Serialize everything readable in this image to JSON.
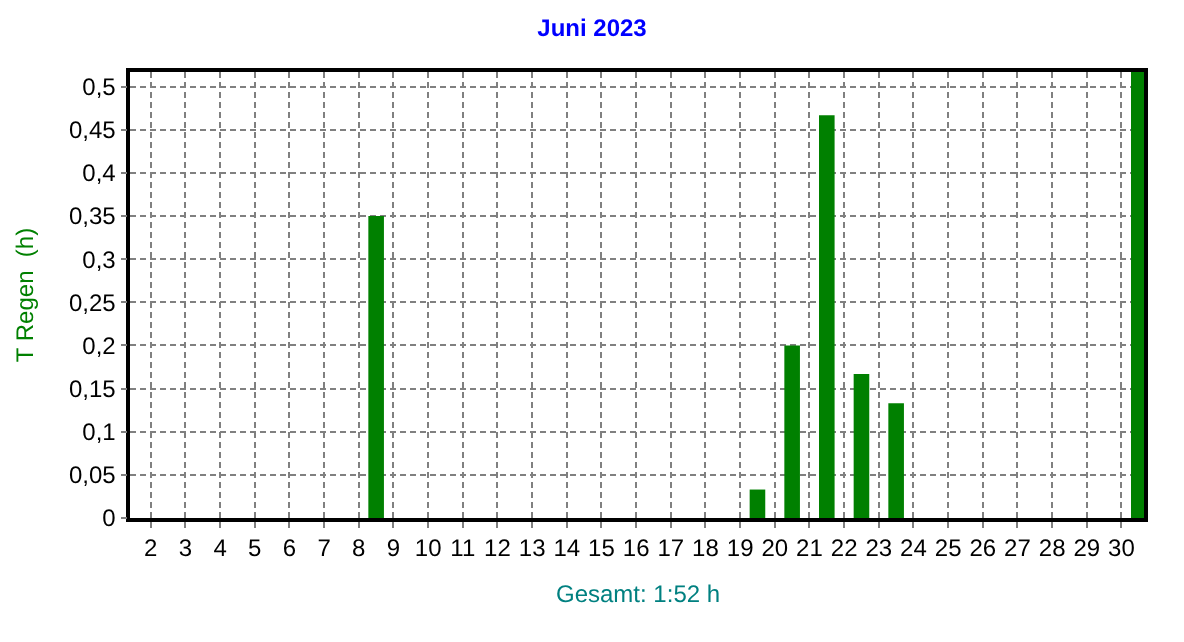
{
  "chart_data": {
    "type": "bar",
    "title": "Juni 2023",
    "ylabel": "T Regen  (h)",
    "x": [
      1.5,
      2.5,
      3.5,
      4.5,
      5.5,
      6.5,
      7.5,
      8.5,
      9.5,
      10.5,
      11.5,
      12.5,
      13.5,
      14.5,
      15.5,
      16.5,
      17.5,
      18.5,
      19.5,
      20.5,
      21.5,
      22.5,
      23.5,
      24.5,
      25.5,
      26.5,
      27.5,
      28.5,
      29.5,
      30.5
    ],
    "values": [
      0,
      0,
      0,
      0,
      0,
      0,
      0,
      0.35,
      0,
      0,
      0,
      0,
      0,
      0,
      0,
      0,
      0,
      0,
      0.033,
      0.2,
      0.467,
      0.167,
      0.133,
      0,
      0,
      0,
      0,
      0,
      0,
      0.517
    ],
    "color": "#008000",
    "xlim": [
      1.4,
      30.65
    ],
    "xticks": [
      2,
      3,
      4,
      5,
      6,
      7,
      8,
      9,
      10,
      11,
      12,
      13,
      14,
      15,
      16,
      17,
      18,
      19,
      20,
      21,
      22,
      23,
      24,
      25,
      26,
      27,
      28,
      29,
      30
    ],
    "ylim": [
      0,
      0.517
    ],
    "yticks": [
      0,
      {
        "value": 0.05,
        "label": "0,05"
      },
      {
        "value": 0.1,
        "label": "0,1"
      },
      {
        "value": 0.15,
        "label": "0,15"
      },
      {
        "value": 0.2,
        "label": "0,2"
      },
      {
        "value": 0.25,
        "label": "0,25"
      },
      {
        "value": 0.3,
        "label": "0,3"
      },
      {
        "value": 0.35,
        "label": "0,35"
      },
      {
        "value": 0.4,
        "label": "0,4"
      },
      {
        "value": 0.45,
        "label": "0,45"
      },
      {
        "value": 0.5,
        "label": "0,5"
      }
    ],
    "grid": true,
    "annotations": [
      "Gesamt: 1:52 h"
    ]
  }
}
